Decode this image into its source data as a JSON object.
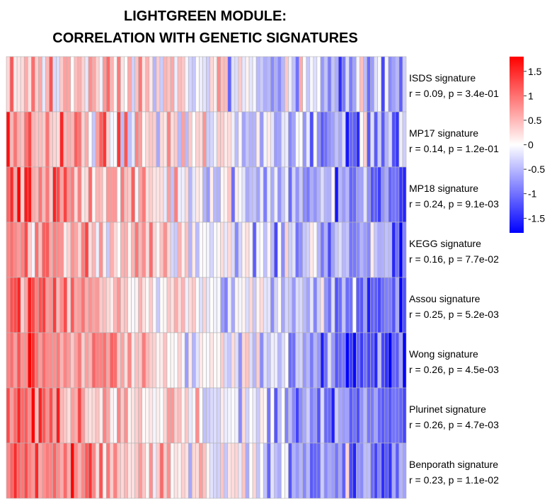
{
  "chart_data": {
    "type": "heatmap",
    "title_lines": [
      "LIGHTGREEN MODULE:",
      "CORRELATION WITH GENETIC SIGNATURES"
    ],
    "n_samples": 112,
    "color_scale": {
      "min_color": "#0000ff",
      "mid_color": "#ffffff",
      "max_color": "#ff0000",
      "range": [
        -1.8,
        1.8
      ],
      "ticks": [
        "1.5",
        "1",
        "0.5",
        "0",
        "-0.5",
        "-1",
        "-1.5"
      ],
      "tick_values": [
        1.5,
        1,
        0.5,
        0,
        -0.5,
        -1,
        -1.5
      ]
    },
    "rows": [
      {
        "name": "ISDS signature",
        "stat": "r = 0.09, p = 3.4e-01",
        "r": 0.09
      },
      {
        "name": "MP17 signature",
        "stat": "r = 0.14, p = 1.2e-01",
        "r": 0.14
      },
      {
        "name": "MP18 signature",
        "stat": "r = 0.24, p = 9.1e-03",
        "r": 0.24
      },
      {
        "name": "KEGG signature",
        "stat": "r = 0.16, p = 7.7e-02",
        "r": 0.16
      },
      {
        "name": "Assou signature",
        "stat": "r = 0.25, p = 5.2e-03",
        "r": 0.25
      },
      {
        "name": "Wong signature",
        "stat": "r = 0.26, p = 4.5e-03",
        "r": 0.26
      },
      {
        "name": "Plurinet signature",
        "stat": "r = 0.26, p = 4.7e-03",
        "r": 0.26
      },
      {
        "name": "Benporath signature",
        "stat": "r = 0.23, p = 1.1e-02",
        "r": 0.23
      }
    ]
  }
}
